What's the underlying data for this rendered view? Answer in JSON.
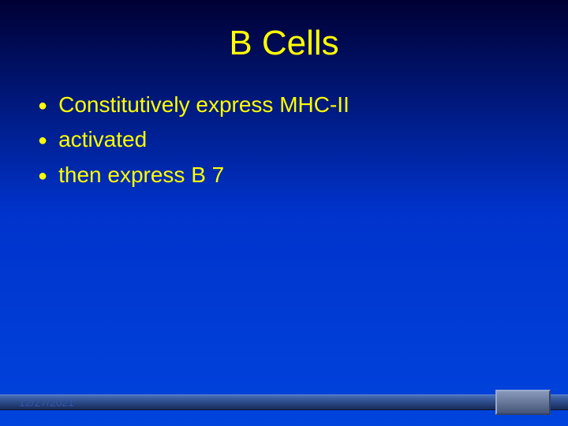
{
  "slide": {
    "title": "B Cells",
    "bullets": [
      "Constitutively express MHC-II",
      "activated",
      " then express B 7"
    ],
    "date": "12/27/2021"
  },
  "style": {
    "title_color": "#ffff00",
    "title_fontsize": 44,
    "bullet_color": "#ffff00",
    "bullet_fontsize": 28,
    "background_gradient_top": "#000033",
    "background_gradient_mid": "#0033cc",
    "background_gradient_bottom": "#0044dd",
    "date_color": "#3355aa",
    "date_fontsize": 14,
    "footer_rail_gradient": [
      "#4a6fb8",
      "#2a4a88",
      "#1a2a58"
    ],
    "footer_button_gradient": [
      "#8899bb",
      "#667799",
      "#445577"
    ]
  }
}
